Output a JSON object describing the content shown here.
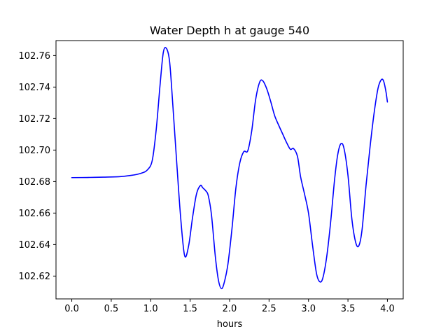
{
  "chart_data": {
    "type": "line",
    "title": "Water Depth h at gauge 540",
    "xlabel": "hours",
    "ylabel": "",
    "xlim": [
      -0.2,
      4.2
    ],
    "ylim": [
      102.6055,
      102.7695
    ],
    "xticks": [
      0.0,
      0.5,
      1.0,
      1.5,
      2.0,
      2.5,
      3.0,
      3.5,
      4.0
    ],
    "xtick_labels": [
      "0.0",
      "0.5",
      "1.0",
      "1.5",
      "2.0",
      "2.5",
      "3.0",
      "3.5",
      "4.0"
    ],
    "yticks": [
      102.62,
      102.64,
      102.66,
      102.68,
      102.7,
      102.72,
      102.74,
      102.76
    ],
    "ytick_labels": [
      "102.62",
      "102.64",
      "102.66",
      "102.68",
      "102.70",
      "102.72",
      "102.74",
      "102.76"
    ],
    "grid": false,
    "series": [
      {
        "name": "",
        "color": "#0000ff",
        "x": [
          0.0,
          0.2,
          0.4,
          0.6,
          0.75,
          0.88,
          0.96,
          1.02,
          1.07,
          1.12,
          1.16,
          1.2,
          1.24,
          1.28,
          1.33,
          1.38,
          1.43,
          1.48,
          1.53,
          1.58,
          1.63,
          1.66,
          1.7,
          1.73,
          1.77,
          1.82,
          1.86,
          1.9,
          1.94,
          1.98,
          2.03,
          2.08,
          2.13,
          2.18,
          2.23,
          2.28,
          2.33,
          2.38,
          2.42,
          2.47,
          2.52,
          2.57,
          2.62,
          2.67,
          2.72,
          2.77,
          2.81,
          2.86,
          2.9,
          2.95,
          3.0,
          3.05,
          3.1,
          3.14,
          3.18,
          3.23,
          3.28,
          3.33,
          3.37,
          3.41,
          3.45,
          3.5,
          3.55,
          3.6,
          3.64,
          3.68,
          3.73,
          3.78,
          3.83,
          3.88,
          3.92,
          3.95,
          3.98,
          4.0
        ],
        "values": [
          102.6825,
          102.6826,
          102.6828,
          102.6831,
          102.6839,
          102.6853,
          102.6875,
          102.6935,
          102.713,
          102.742,
          102.762,
          102.7645,
          102.756,
          102.729,
          102.692,
          102.657,
          102.633,
          102.639,
          102.657,
          102.672,
          102.6775,
          102.676,
          102.674,
          102.671,
          102.659,
          102.632,
          102.617,
          102.612,
          102.6175,
          102.628,
          102.65,
          102.676,
          102.692,
          102.699,
          102.6995,
          102.712,
          102.732,
          102.743,
          102.744,
          102.739,
          102.731,
          102.722,
          102.716,
          102.7105,
          102.705,
          102.7005,
          102.701,
          102.696,
          102.683,
          102.672,
          102.66,
          102.64,
          102.622,
          102.6165,
          102.6185,
          102.632,
          102.654,
          102.681,
          102.697,
          102.704,
          102.701,
          102.684,
          102.656,
          102.641,
          102.6395,
          102.65,
          102.678,
          102.702,
          102.723,
          102.739,
          102.7445,
          102.744,
          102.7375,
          102.7305
        ]
      }
    ]
  }
}
